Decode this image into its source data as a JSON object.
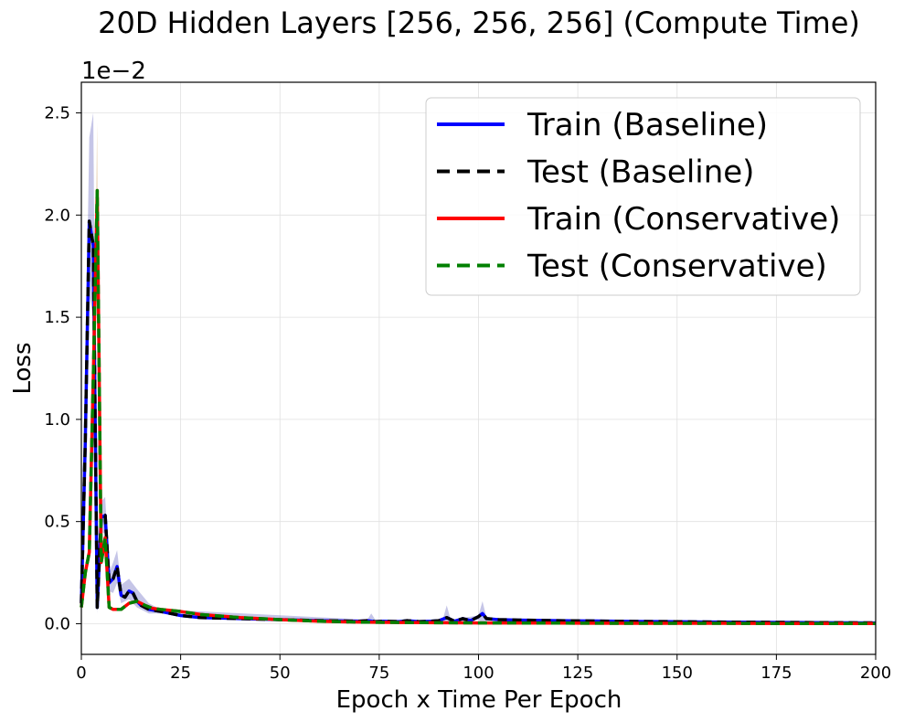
{
  "chart_data": {
    "type": "line",
    "title": "20D Hidden Layers [256, 256, 256] (Compute Time)",
    "xlabel": "Epoch x Time Per Epoch",
    "ylabel": "Loss",
    "offset_text": "1e−2",
    "xlim": [
      0,
      200
    ],
    "ylim": [
      -0.15,
      2.65
    ],
    "xticks": [
      0,
      25,
      50,
      75,
      100,
      125,
      150,
      175,
      200
    ],
    "xtick_labels": [
      "0",
      "25",
      "50",
      "75",
      "100",
      "125",
      "150",
      "175",
      "200"
    ],
    "yticks": [
      0.0,
      0.5,
      1.0,
      1.5,
      2.0,
      2.5
    ],
    "ytick_labels": [
      "0.0",
      "0.5",
      "1.0",
      "1.5",
      "2.0",
      "2.5"
    ],
    "grid": true,
    "legend_position": "top-right",
    "series": [
      {
        "name": "Train (Baseline)",
        "color": "#0000ff",
        "dash": "solid",
        "x": [
          0,
          1,
          2,
          3,
          4,
          5,
          6,
          7,
          8,
          9,
          10,
          11,
          12,
          13,
          14,
          15,
          17,
          20,
          25,
          30,
          40,
          50,
          60,
          70,
          72,
          74,
          76,
          80,
          82,
          85,
          88,
          90,
          92,
          94,
          96,
          98,
          100,
          101,
          102,
          105,
          110,
          120,
          130,
          140,
          150,
          160,
          170,
          180,
          190,
          200
        ],
        "y": [
          0.1,
          0.9,
          1.97,
          1.85,
          0.08,
          0.52,
          0.53,
          0.2,
          0.22,
          0.28,
          0.14,
          0.13,
          0.16,
          0.15,
          0.11,
          0.09,
          0.07,
          0.06,
          0.04,
          0.03,
          0.025,
          0.02,
          0.015,
          0.012,
          0.015,
          0.01,
          0.012,
          0.01,
          0.015,
          0.01,
          0.012,
          0.015,
          0.03,
          0.012,
          0.025,
          0.015,
          0.035,
          0.05,
          0.025,
          0.02,
          0.018,
          0.015,
          0.013,
          0.011,
          0.01,
          0.008,
          0.007,
          0.006,
          0.005,
          0.004
        ]
      },
      {
        "name": "Test (Baseline)",
        "color": "#000000",
        "dash": "dashed",
        "x": [
          0,
          1,
          2,
          3,
          4,
          5,
          6,
          7,
          8,
          9,
          10,
          11,
          12,
          13,
          14,
          15,
          17,
          20,
          25,
          30,
          40,
          50,
          60,
          70,
          72,
          74,
          76,
          80,
          82,
          85,
          88,
          90,
          92,
          94,
          96,
          98,
          100,
          101,
          102,
          105,
          110,
          120,
          130,
          140,
          150,
          160,
          170,
          180,
          190,
          200
        ],
        "y": [
          0.1,
          0.9,
          1.97,
          1.85,
          0.08,
          0.52,
          0.53,
          0.2,
          0.22,
          0.28,
          0.14,
          0.13,
          0.16,
          0.15,
          0.11,
          0.09,
          0.07,
          0.06,
          0.04,
          0.03,
          0.025,
          0.02,
          0.015,
          0.012,
          0.015,
          0.01,
          0.012,
          0.01,
          0.015,
          0.01,
          0.012,
          0.015,
          0.03,
          0.012,
          0.025,
          0.015,
          0.035,
          0.05,
          0.025,
          0.02,
          0.018,
          0.015,
          0.013,
          0.011,
          0.01,
          0.008,
          0.007,
          0.006,
          0.005,
          0.004
        ]
      },
      {
        "name": "Train (Conservative)",
        "color": "#ff0000",
        "dash": "solid",
        "x": [
          0,
          1,
          2,
          3,
          4,
          5,
          6,
          7,
          8,
          10,
          12,
          14,
          16,
          18,
          20,
          25,
          30,
          40,
          50,
          60,
          70,
          80,
          90,
          100,
          120,
          140,
          160,
          180,
          200
        ],
        "y": [
          0.08,
          0.25,
          0.35,
          1.2,
          2.12,
          0.3,
          0.42,
          0.08,
          0.07,
          0.07,
          0.1,
          0.11,
          0.09,
          0.075,
          0.07,
          0.06,
          0.045,
          0.03,
          0.02,
          0.012,
          0.008,
          0.006,
          0.005,
          0.004,
          0.003,
          0.002,
          0.002,
          0.001,
          0.001
        ]
      },
      {
        "name": "Test (Conservative)",
        "color": "#008000",
        "dash": "dashed",
        "x": [
          0,
          1,
          2,
          3,
          4,
          5,
          6,
          7,
          8,
          10,
          12,
          14,
          16,
          18,
          20,
          25,
          30,
          40,
          50,
          60,
          70,
          80,
          90,
          100,
          120,
          140,
          160,
          180,
          200
        ],
        "y": [
          0.08,
          0.25,
          0.35,
          1.2,
          2.12,
          0.3,
          0.42,
          0.08,
          0.07,
          0.07,
          0.1,
          0.11,
          0.09,
          0.075,
          0.07,
          0.06,
          0.045,
          0.03,
          0.02,
          0.012,
          0.008,
          0.006,
          0.005,
          0.004,
          0.003,
          0.002,
          0.002,
          0.001,
          0.001
        ]
      }
    ],
    "bands": [
      {
        "color": "#4040b0",
        "x": [
          0,
          1,
          2,
          3,
          4,
          5,
          6,
          7,
          8,
          9,
          10,
          12,
          14,
          17,
          20,
          72,
          73,
          74,
          91,
          92,
          93,
          100,
          101,
          102,
          110
        ],
        "upper": [
          0.12,
          1.2,
          2.38,
          2.5,
          0.12,
          0.6,
          0.62,
          0.25,
          0.3,
          0.36,
          0.19,
          0.22,
          0.17,
          0.1,
          0.07,
          0.02,
          0.05,
          0.02,
          0.02,
          0.09,
          0.02,
          0.04,
          0.11,
          0.03,
          0.02
        ],
        "lower": [
          0.08,
          0.6,
          1.6,
          1.5,
          0.05,
          0.45,
          0.44,
          0.16,
          0.15,
          0.2,
          0.1,
          0.12,
          0.08,
          0.05,
          0.05,
          0.005,
          0.005,
          0.005,
          0.005,
          0.0,
          0.005,
          0.02,
          0.0,
          0.015,
          0.012
        ]
      },
      {
        "color": "#d0a060",
        "x": [
          3,
          4,
          5
        ],
        "upper": [
          1.4,
          2.45,
          0.4
        ],
        "lower": [
          1.0,
          1.8,
          0.22
        ]
      }
    ]
  }
}
